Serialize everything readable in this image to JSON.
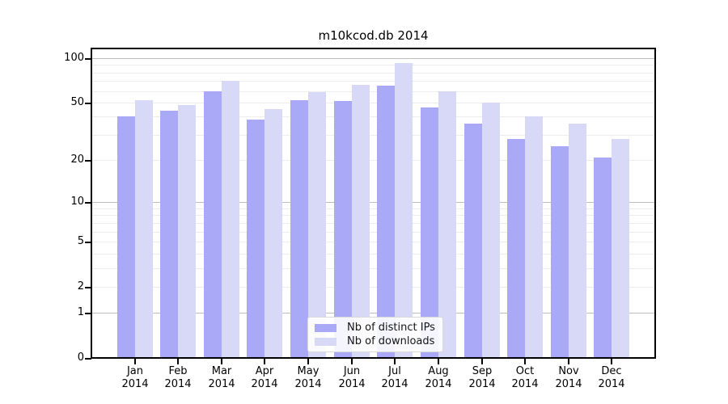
{
  "chart_data": {
    "type": "bar",
    "title": "m10kcod.db 2014",
    "categories": [
      "Jan 2014",
      "Feb 2014",
      "Mar 2014",
      "Apr 2014",
      "May 2014",
      "Jun 2014",
      "Jul 2014",
      "Aug 2014",
      "Sep 2014",
      "Oct 2014",
      "Nov 2014",
      "Dec 2014"
    ],
    "series": [
      {
        "name": "Nb of distinct IPs",
        "color": "#a9a9f7",
        "values": [
          40,
          44,
          60,
          38,
          52,
          51,
          65,
          46,
          36,
          28,
          25,
          21
        ]
      },
      {
        "name": "Nb of downloads",
        "color": "#d8d8f7",
        "values": [
          52,
          48,
          70,
          45,
          59,
          66,
          93,
          60,
          50,
          40,
          36,
          28
        ]
      }
    ],
    "xlabel": "",
    "ylabel": "",
    "y_scale": "log10(1+v)",
    "ylim": [
      0,
      116
    ],
    "y_ticks": [
      100,
      50,
      20,
      10,
      5,
      2,
      1,
      0
    ],
    "grid": {
      "on": true,
      "major_values": [
        1,
        10,
        100
      ],
      "minor_values": [
        2,
        3,
        4,
        5,
        6,
        7,
        8,
        9,
        20,
        30,
        40,
        50,
        60,
        70,
        80,
        90
      ],
      "major_color": "#bdbdbd",
      "minor_color": "#ededed"
    },
    "legend": {
      "position": "lower center"
    },
    "axis_color": "#000000",
    "background": "#ffffff"
  }
}
